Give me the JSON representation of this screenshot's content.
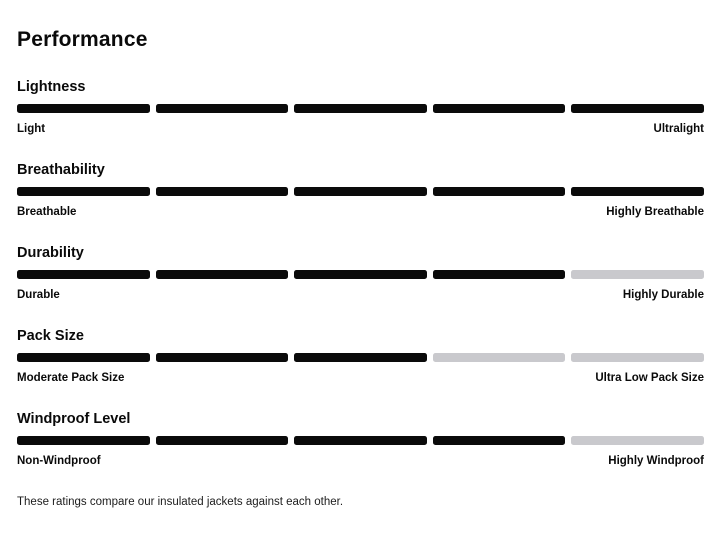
{
  "page": {
    "title": "Performance",
    "footnote": "These ratings compare our insulated jackets against each other."
  },
  "colors": {
    "segment_filled": "#0a0a0a",
    "segment_empty": "#c9c9cd",
    "text": "#0a0a0a"
  },
  "scale": {
    "segments_total": 5
  },
  "sections": [
    {
      "name": "Lightness",
      "low_label": "Light",
      "high_label": "Ultralight",
      "rating": 5
    },
    {
      "name": "Breathability",
      "low_label": "Breathable",
      "high_label": "Highly Breathable",
      "rating": 5
    },
    {
      "name": "Durability",
      "low_label": "Durable",
      "high_label": "Highly Durable",
      "rating": 4
    },
    {
      "name": "Pack Size",
      "low_label": "Moderate Pack Size",
      "high_label": "Ultra Low Pack Size",
      "rating": 3
    },
    {
      "name": "Windproof Level",
      "low_label": "Non-Windproof",
      "high_label": "Highly Windproof",
      "rating": 4
    }
  ]
}
